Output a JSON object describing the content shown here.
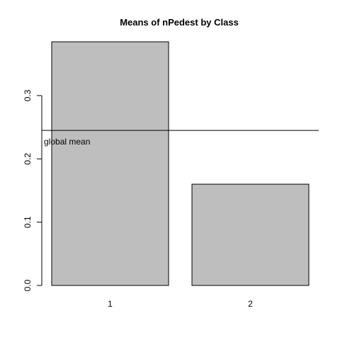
{
  "chart_data": {
    "type": "bar",
    "title": "Means of nPedest by Class",
    "xlabel": "",
    "ylabel": "",
    "categories": [
      "1",
      "2"
    ],
    "values": [
      0.385,
      0.16
    ],
    "ylim": [
      0,
      0.385
    ],
    "yticks": [
      {
        "value": 0.0,
        "label": "0.0"
      },
      {
        "value": 0.1,
        "label": "0.1"
      },
      {
        "value": 0.2,
        "label": "0.2"
      },
      {
        "value": 0.3,
        "label": "0.3"
      }
    ],
    "bar_fill": "#bebebe",
    "bar_stroke": "#000000",
    "reference_line": {
      "value": 0.245,
      "label": "global mean"
    },
    "grid": false,
    "legend": "none"
  }
}
